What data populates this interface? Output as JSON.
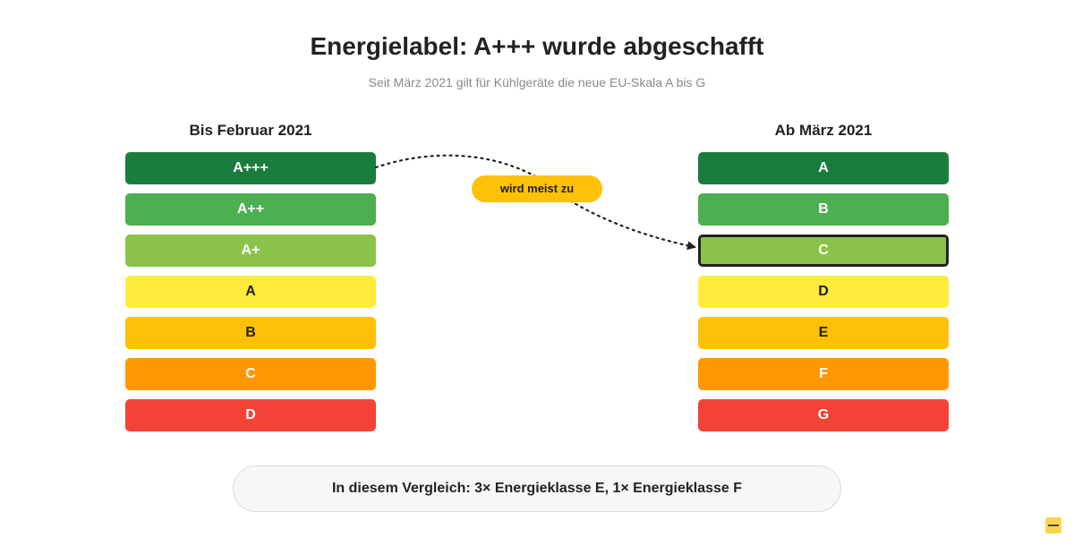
{
  "header": {
    "title": "Energielabel: A+++ wurde abgeschafft",
    "subtitle": "Seit März 2021 gilt für Kühlgeräte die neue EU-Skala A bis G"
  },
  "left_scale": {
    "heading": "Bis Februar 2021",
    "classes": [
      {
        "label": "A+++",
        "color": "#1b7d3d",
        "text_color": "#ffffff"
      },
      {
        "label": "A++",
        "color": "#4caf50",
        "text_color": "#ffffff"
      },
      {
        "label": "A+",
        "color": "#8bc34a",
        "text_color": "#ffffff"
      },
      {
        "label": "A",
        "color": "#ffeb3b",
        "text_color": "#222222"
      },
      {
        "label": "B",
        "color": "#ffc107",
        "text_color": "#222222"
      },
      {
        "label": "C",
        "color": "#ff9800",
        "text_color": "#ffffff"
      },
      {
        "label": "D",
        "color": "#f44336",
        "text_color": "#ffffff"
      }
    ]
  },
  "right_scale": {
    "heading": "Ab März 2021",
    "classes": [
      {
        "label": "A",
        "color": "#1b7d3d",
        "text_color": "#ffffff",
        "highlighted": false
      },
      {
        "label": "B",
        "color": "#4caf50",
        "text_color": "#ffffff",
        "highlighted": false
      },
      {
        "label": "C",
        "color": "#8bc34a",
        "text_color": "#ffffff",
        "highlighted": true
      },
      {
        "label": "D",
        "color": "#ffeb3b",
        "text_color": "#222222",
        "highlighted": false
      },
      {
        "label": "E",
        "color": "#ffc107",
        "text_color": "#222222",
        "highlighted": false
      },
      {
        "label": "F",
        "color": "#ff9800",
        "text_color": "#ffffff",
        "highlighted": false
      },
      {
        "label": "G",
        "color": "#f44336",
        "text_color": "#ffffff",
        "highlighted": false
      }
    ]
  },
  "mapping": {
    "label": "wird meist zu",
    "from": "A+++",
    "to": "C",
    "color": "#ffc107"
  },
  "summary": {
    "text": "In diesem Vergleich: 3× Energieklasse E, 1× Energieklasse F"
  },
  "corner_badge": {
    "icon": "minus-icon",
    "color": "#ffd54f"
  }
}
